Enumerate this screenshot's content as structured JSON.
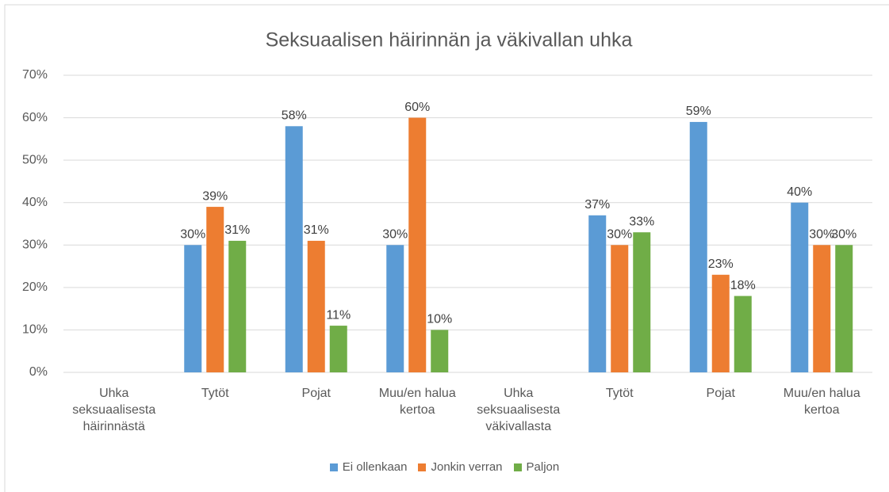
{
  "chart_data": {
    "type": "bar",
    "title": "Seksuaalisen häirinnän ja väkivallan uhka",
    "categories": [
      "Uhka seksuaalisesta häirinnästä",
      "Tytöt",
      "Pojat",
      "Muu/en halua kertoa",
      "Uhka seksuaalisesta väkivallasta",
      "Tytöt",
      "Pojat",
      "Muu/en halua kertoa"
    ],
    "series": [
      {
        "name": "Ei ollenkaan",
        "color": "#5b9bd5",
        "values": [
          null,
          30,
          58,
          30,
          null,
          37,
          59,
          40
        ],
        "value_labels": [
          null,
          "30%",
          "58%",
          "30%",
          null,
          "37%",
          "59%",
          "40%"
        ]
      },
      {
        "name": "Jonkin verran",
        "color": "#ed7d31",
        "values": [
          null,
          39,
          31,
          60,
          null,
          30,
          23,
          30
        ],
        "value_labels": [
          null,
          "39%",
          "31%",
          "60%",
          null,
          "30%",
          "23%",
          "30%"
        ]
      },
      {
        "name": "Paljon",
        "color": "#70ad47",
        "values": [
          null,
          31,
          11,
          10,
          null,
          33,
          18,
          30
        ],
        "value_labels": [
          null,
          "31%",
          "11%",
          "10%",
          null,
          "33%",
          "18%",
          "30%"
        ]
      }
    ],
    "ylim": [
      0,
      70
    ],
    "yticks": [
      {
        "value": 0,
        "label": "0%"
      },
      {
        "value": 10,
        "label": "10%"
      },
      {
        "value": 20,
        "label": "20%"
      },
      {
        "value": 30,
        "label": "30%"
      },
      {
        "value": 40,
        "label": "40%"
      },
      {
        "value": 50,
        "label": "50%"
      },
      {
        "value": 60,
        "label": "60%"
      },
      {
        "value": 70,
        "label": "70%"
      }
    ],
    "grid": true,
    "legend": "bottom"
  }
}
